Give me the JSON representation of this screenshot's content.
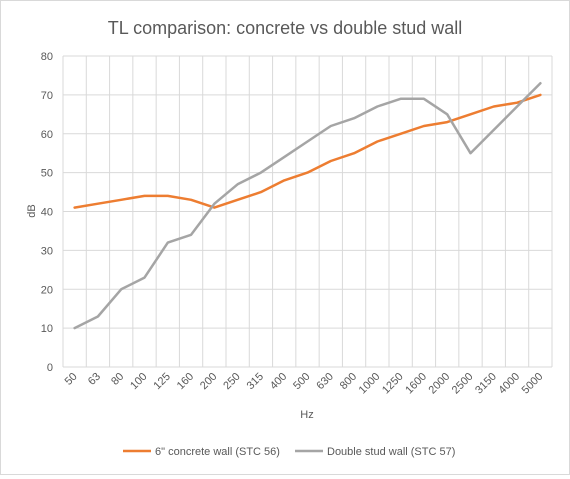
{
  "chart_data": {
    "type": "line",
    "title": "TL comparison: concrete vs double stud wall",
    "xlabel": "Hz",
    "ylabel": "dB",
    "ylim": [
      0,
      80
    ],
    "yticks": [
      0,
      10,
      20,
      30,
      40,
      50,
      60,
      70,
      80
    ],
    "grid": true,
    "legend_position": "bottom",
    "categories": [
      "50",
      "63",
      "80",
      "100",
      "125",
      "160",
      "200",
      "250",
      "315",
      "400",
      "500",
      "630",
      "800",
      "1000",
      "1250",
      "1600",
      "2000",
      "2500",
      "3150",
      "4000",
      "5000"
    ],
    "series": [
      {
        "name": "6\" concrete wall (STC 56)",
        "color": "#ed7d31",
        "values": [
          41,
          42,
          43,
          44,
          44,
          43,
          41,
          43,
          45,
          48,
          50,
          53,
          55,
          58,
          60,
          62,
          63,
          65,
          67,
          68,
          70
        ]
      },
      {
        "name": "Double stud wall (STC 57)",
        "color": "#a5a5a5",
        "values": [
          10,
          13,
          20,
          23,
          32,
          34,
          42,
          47,
          50,
          54,
          58,
          62,
          64,
          67,
          69,
          69,
          65,
          55,
          61,
          67,
          73
        ]
      }
    ]
  }
}
